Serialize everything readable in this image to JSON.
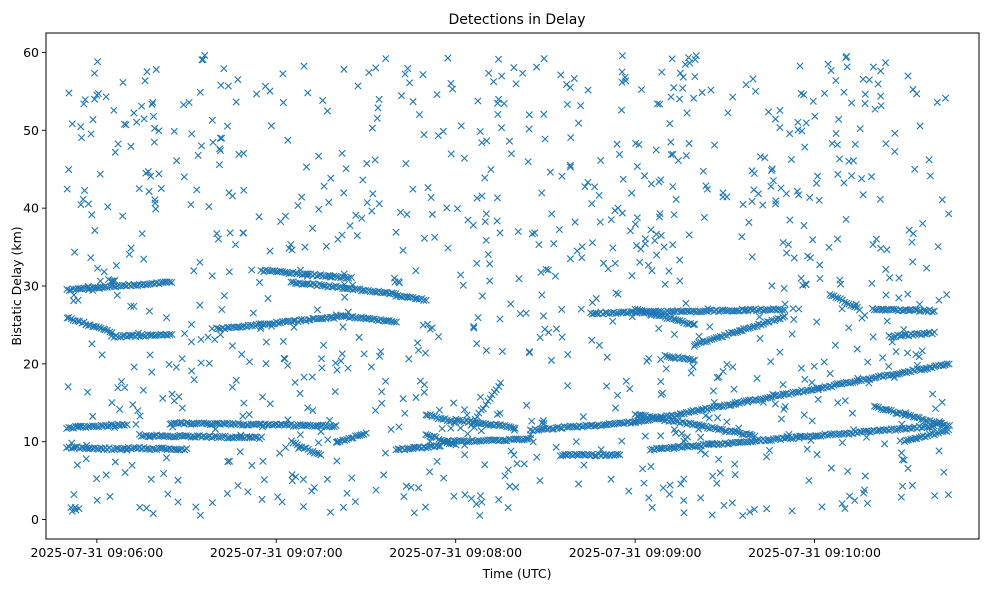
{
  "chart_data": {
    "type": "scatter",
    "title": "Detections in Delay",
    "xlabel": "Time (UTC)",
    "ylabel": "Bistatic Delay (km)",
    "x_type": "time",
    "xlim": [
      "2025-07-31 09:05:43",
      "2025-07-31 09:10:55"
    ],
    "ylim": [
      -2.5,
      62.5
    ],
    "x_ticks": [
      "2025-07-31 09:06:00",
      "2025-07-31 09:07:00",
      "2025-07-31 09:08:00",
      "2025-07-31 09:09:00",
      "2025-07-31 09:10:00"
    ],
    "y_ticks": [
      0,
      10,
      20,
      30,
      40,
      50,
      60
    ],
    "grid": false,
    "legend": "none",
    "marker": "x",
    "color": "#1f77b4",
    "tracks": [
      {
        "x_start": "2025-07-31 09:05:50",
        "x_end": "2025-07-31 09:06:25",
        "y_start": 29.5,
        "y_end": 30.5
      },
      {
        "x_start": "2025-07-31 09:05:50",
        "x_end": "2025-07-31 09:06:05",
        "y_start": 26.0,
        "y_end": 24.0
      },
      {
        "x_start": "2025-07-31 09:06:05",
        "x_end": "2025-07-31 09:06:25",
        "y_start": 23.5,
        "y_end": 23.8
      },
      {
        "x_start": "2025-07-31 09:05:50",
        "x_end": "2025-07-31 09:06:10",
        "y_start": 11.8,
        "y_end": 12.2
      },
      {
        "x_start": "2025-07-31 09:05:50",
        "x_end": "2025-07-31 09:06:10",
        "y_start": 9.3,
        "y_end": 9.0
      },
      {
        "x_start": "2025-07-31 09:06:10",
        "x_end": "2025-07-31 09:06:30",
        "y_start": 9.2,
        "y_end": 9.0
      },
      {
        "x_start": "2025-07-31 09:06:40",
        "x_end": "2025-07-31 09:07:20",
        "y_start": 24.5,
        "y_end": 26.0
      },
      {
        "x_start": "2025-07-31 09:06:55",
        "x_end": "2025-07-31 09:07:25",
        "y_start": 32.0,
        "y_end": 31.0
      },
      {
        "x_start": "2025-07-31 09:07:05",
        "x_end": "2025-07-31 09:07:40",
        "y_start": 30.5,
        "y_end": 29.0
      },
      {
        "x_start": "2025-07-31 09:07:40",
        "x_end": "2025-07-31 09:07:50",
        "y_start": 28.8,
        "y_end": 28.2
      },
      {
        "x_start": "2025-07-31 09:07:20",
        "x_end": "2025-07-31 09:07:40",
        "y_start": 26.2,
        "y_end": 25.4
      },
      {
        "x_start": "2025-07-31 09:06:25",
        "x_end": "2025-07-31 09:07:20",
        "y_start": 12.4,
        "y_end": 12.0
      },
      {
        "x_start": "2025-07-31 09:06:15",
        "x_end": "2025-07-31 09:06:55",
        "y_start": 10.8,
        "y_end": 10.5
      },
      {
        "x_start": "2025-07-31 09:07:05",
        "x_end": "2025-07-31 09:07:15",
        "y_start": 10.0,
        "y_end": 8.2
      },
      {
        "x_start": "2025-07-31 09:07:20",
        "x_end": "2025-07-31 09:07:30",
        "y_start": 10.0,
        "y_end": 11.0
      },
      {
        "x_start": "2025-07-31 09:07:40",
        "x_end": "2025-07-31 09:07:55",
        "y_start": 9.0,
        "y_end": 9.5
      },
      {
        "x_start": "2025-07-31 09:07:50",
        "x_end": "2025-07-31 09:08:00",
        "y_start": 13.5,
        "y_end": 12.5
      },
      {
        "x_start": "2025-07-31 09:08:00",
        "x_end": "2025-07-31 09:08:20",
        "y_start": 12.8,
        "y_end": 11.8
      },
      {
        "x_start": "2025-07-31 09:07:55",
        "x_end": "2025-07-31 09:08:25",
        "y_start": 10.0,
        "y_end": 10.3
      },
      {
        "x_start": "2025-07-31 09:08:05",
        "x_end": "2025-07-31 09:08:15",
        "y_start": 12.0,
        "y_end": 17.5
      },
      {
        "x_start": "2025-07-31 09:08:25",
        "x_end": "2025-07-31 09:09:00",
        "y_start": 11.5,
        "y_end": 12.5
      },
      {
        "x_start": "2025-07-31 09:09:00",
        "x_end": "2025-07-31 09:10:45",
        "y_start": 12.5,
        "y_end": 20.0
      },
      {
        "x_start": "2025-07-31 09:08:35",
        "x_end": "2025-07-31 09:08:55",
        "y_start": 8.3,
        "y_end": 8.3
      },
      {
        "x_start": "2025-07-31 09:09:05",
        "x_end": "2025-07-31 09:10:40",
        "y_start": 9.0,
        "y_end": 12.0
      },
      {
        "x_start": "2025-07-31 09:09:00",
        "x_end": "2025-07-31 09:09:40",
        "y_start": 13.5,
        "y_end": 10.8
      },
      {
        "x_start": "2025-07-31 09:10:20",
        "x_end": "2025-07-31 09:10:45",
        "y_start": 14.5,
        "y_end": 12.0
      },
      {
        "x_start": "2025-07-31 09:10:30",
        "x_end": "2025-07-31 09:10:45",
        "y_start": 10.0,
        "y_end": 11.5
      },
      {
        "x_start": "2025-07-31 09:08:45",
        "x_end": "2025-07-31 09:09:50",
        "y_start": 26.5,
        "y_end": 27.0
      },
      {
        "x_start": "2025-07-31 09:09:00",
        "x_end": "2025-07-31 09:09:20",
        "y_start": 27.0,
        "y_end": 25.0
      },
      {
        "x_start": "2025-07-31 09:09:20",
        "x_end": "2025-07-31 09:09:50",
        "y_start": 22.5,
        "y_end": 26.0
      },
      {
        "x_start": "2025-07-31 09:09:10",
        "x_end": "2025-07-31 09:09:20",
        "y_start": 21.0,
        "y_end": 20.5
      },
      {
        "x_start": "2025-07-31 09:10:05",
        "x_end": "2025-07-31 09:10:15",
        "y_start": 29.0,
        "y_end": 27.0
      },
      {
        "x_start": "2025-07-31 09:10:20",
        "x_end": "2025-07-31 09:10:40",
        "y_start": 27.0,
        "y_end": 26.8
      },
      {
        "x_start": "2025-07-31 09:10:25",
        "x_end": "2025-07-31 09:10:40",
        "y_start": 23.5,
        "y_end": 24.0
      },
      {
        "x_start": "2025-07-31 09:07:50",
        "x_end": "2025-07-31 09:08:00",
        "y_start": 11.0,
        "y_end": 9.5
      }
    ],
    "scatter_density": 1000
  }
}
